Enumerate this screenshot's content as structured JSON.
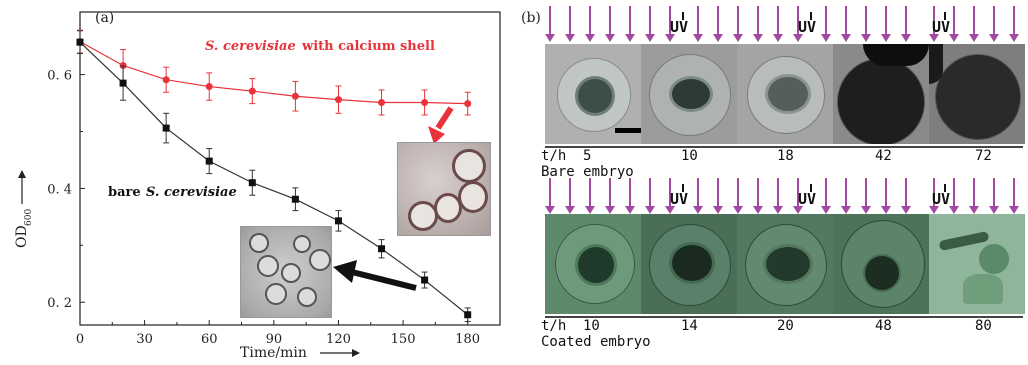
{
  "chart_data": {
    "type": "line",
    "panel_label": "(a)",
    "xlabel": "Time/min",
    "ylabel": "OD",
    "ylabel_sub": "600",
    "xlim": [
      0,
      195
    ],
    "ylim": [
      0.16,
      0.71
    ],
    "xticks": [
      0,
      30,
      60,
      90,
      120,
      150,
      180
    ],
    "yticks": [
      0.2,
      0.4,
      0.6
    ],
    "ytick_labels": [
      "0. 2",
      "0. 4",
      "0. 6"
    ],
    "series": [
      {
        "name_prefix": "S. cerevisiae",
        "name_suffix": "with calcium shell",
        "color": "#e8333a",
        "marker": "circle",
        "x": [
          0,
          20,
          40,
          60,
          80,
          100,
          120,
          140,
          160,
          180
        ],
        "y": [
          0.658,
          0.616,
          0.591,
          0.579,
          0.571,
          0.562,
          0.556,
          0.551,
          0.551,
          0.549
        ],
        "err": [
          0.02,
          0.028,
          0.022,
          0.024,
          0.022,
          0.026,
          0.024,
          0.022,
          0.022,
          0.02
        ]
      },
      {
        "name_prefix": "bare",
        "name_suffix": "S. cerevisiae",
        "color": "#333333",
        "marker": "square",
        "x": [
          0,
          20,
          40,
          60,
          80,
          100,
          120,
          140,
          160,
          180
        ],
        "y": [
          0.657,
          0.585,
          0.506,
          0.448,
          0.41,
          0.381,
          0.343,
          0.294,
          0.239,
          0.178
        ],
        "err": [
          0.02,
          0.03,
          0.026,
          0.022,
          0.022,
          0.02,
          0.018,
          0.016,
          0.014,
          0.012
        ]
      }
    ]
  },
  "panel_b": {
    "label": "(b)",
    "uv_label": "UV",
    "time_prefix": "t/h",
    "bare": {
      "caption": "Bare embryo",
      "times": [
        "5",
        "10",
        "18",
        "42",
        "72"
      ]
    },
    "coated": {
      "caption": "Coated embryo",
      "times": [
        "10",
        "14",
        "20",
        "48",
        "80"
      ]
    }
  },
  "colors": {
    "arrow_purple": "#a24aa2",
    "red": "#e8333a",
    "dark": "#333333"
  }
}
